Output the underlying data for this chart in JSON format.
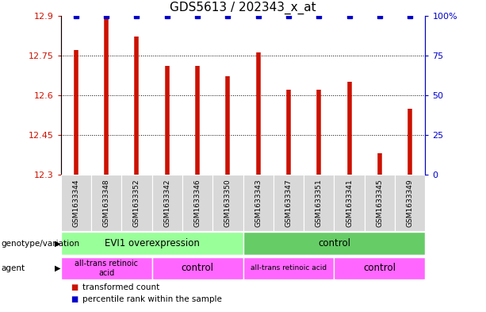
{
  "title": "GDS5613 / 202343_x_at",
  "samples": [
    "GSM1633344",
    "GSM1633348",
    "GSM1633352",
    "GSM1633342",
    "GSM1633346",
    "GSM1633350",
    "GSM1633343",
    "GSM1633347",
    "GSM1633351",
    "GSM1633341",
    "GSM1633345",
    "GSM1633349"
  ],
  "red_values": [
    12.77,
    12.89,
    12.82,
    12.71,
    12.71,
    12.67,
    12.76,
    12.62,
    12.62,
    12.65,
    12.38,
    12.55
  ],
  "blue_values": [
    100,
    100,
    100,
    100,
    100,
    100,
    100,
    100,
    100,
    100,
    100,
    100
  ],
  "ylim_left": [
    12.3,
    12.9
  ],
  "ylim_right": [
    0,
    100
  ],
  "yticks_left": [
    12.3,
    12.45,
    12.6,
    12.75,
    12.9
  ],
  "yticks_right": [
    0,
    25,
    50,
    75,
    100
  ],
  "ytick_labels_right": [
    "0",
    "25",
    "50",
    "75",
    "100%"
  ],
  "bar_color": "#cc1100",
  "dot_color": "#0000cc",
  "title_fontsize": 11,
  "tick_fontsize": 8,
  "sample_fontsize": 6.5,
  "label_fontsize": 7.5,
  "geno_colors": [
    "#99ff99",
    "#66cc66"
  ],
  "agent_color": "#ff66ff",
  "gray_color": "#d8d8d8",
  "genotype_groups": [
    {
      "label": "EVI1 overexpression",
      "start": 0,
      "end": 6
    },
    {
      "label": "control",
      "start": 6,
      "end": 12
    }
  ],
  "agent_groups": [
    {
      "label": "all-trans retinoic\nacid",
      "start": 0,
      "end": 3
    },
    {
      "label": "control",
      "start": 3,
      "end": 6
    },
    {
      "label": "all-trans retinoic acid",
      "start": 6,
      "end": 9
    },
    {
      "label": "control",
      "start": 9,
      "end": 12
    }
  ]
}
